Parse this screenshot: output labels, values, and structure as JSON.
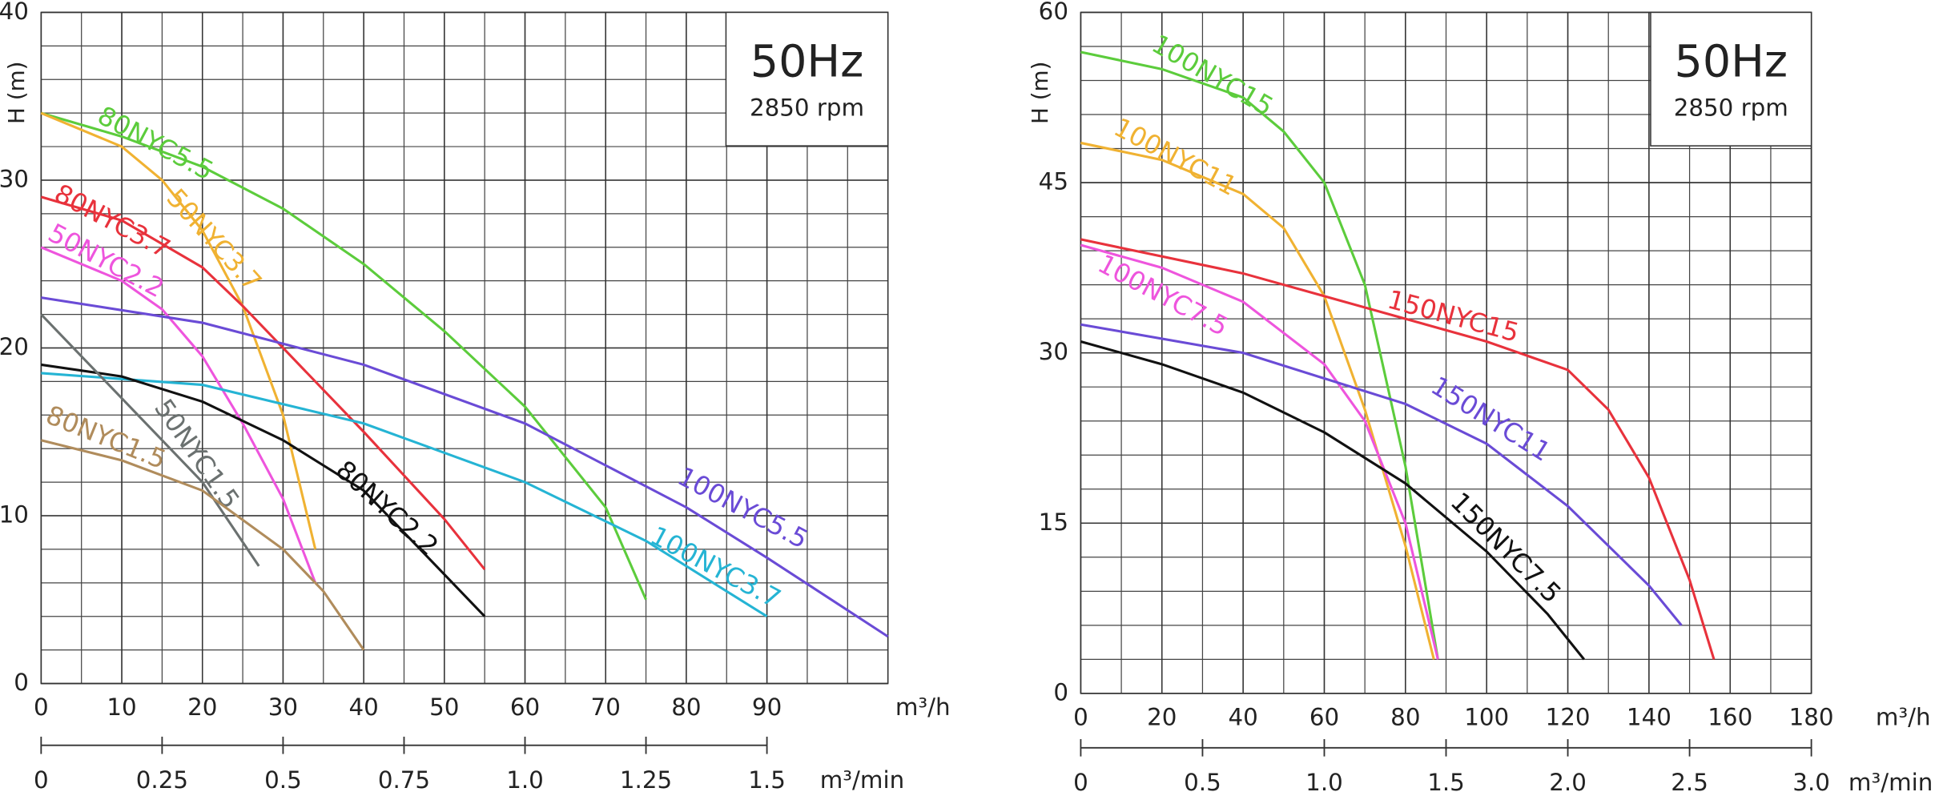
{
  "chart_data": [
    {
      "type": "line",
      "ylabel": "H (m)",
      "xlabel": "m³/h",
      "x2label": "m³/min",
      "annotation": {
        "title": "50Hz",
        "subtitle": "2850 rpm"
      },
      "xlim": [
        0,
        105
      ],
      "xticks": [
        0,
        10,
        20,
        30,
        40,
        50,
        60,
        70,
        80,
        90
      ],
      "ylim": [
        0,
        40
      ],
      "yticks": [
        0,
        10,
        20,
        30,
        40
      ],
      "x2lim": [
        0,
        1.75
      ],
      "x2ticks": [
        0,
        0.25,
        0.5,
        0.75,
        {
          "value": 1,
          "label": "1.0"
        },
        1.25,
        1.5
      ],
      "grid": true,
      "series": [
        {
          "name": "80NYC5.5",
          "color": "#5ccc3c",
          "x": [
            0,
            10,
            20,
            30,
            40,
            50,
            60,
            70,
            75
          ],
          "values": [
            34,
            32.6,
            30.8,
            28.3,
            25,
            21,
            16.5,
            10.5,
            5
          ]
        },
        {
          "name": "50NYC3.7",
          "color": "#f0b232",
          "x": [
            0,
            10,
            15,
            20,
            25,
            30,
            34
          ],
          "values": [
            34,
            32,
            30,
            27,
            22.5,
            16,
            8
          ]
        },
        {
          "name": "80NYC3.7",
          "color": "#e8323c",
          "x": [
            0,
            10,
            20,
            25,
            30,
            40,
            50,
            55
          ],
          "values": [
            29,
            27.6,
            24.8,
            22.5,
            20,
            15,
            9.8,
            6.8
          ]
        },
        {
          "name": "50NYC2.2",
          "color": "#ee55dd",
          "x": [
            0,
            10,
            15,
            20,
            25,
            30,
            34
          ],
          "values": [
            26,
            24,
            22.3,
            19.5,
            15.5,
            11,
            6
          ]
        },
        {
          "name": "100NYC5.5",
          "color": "#6a4bd6",
          "x": [
            0,
            20,
            40,
            60,
            80,
            90,
            105
          ],
          "values": [
            23,
            21.5,
            19,
            15.5,
            10.5,
            7.5,
            2.8
          ]
        },
        {
          "name": "100NYC3.7",
          "color": "#25b4d4",
          "x": [
            0,
            20,
            40,
            60,
            75,
            90
          ],
          "values": [
            18.5,
            17.8,
            15.5,
            12,
            8.5,
            4
          ]
        },
        {
          "name": "80NYC2.2",
          "color": "#111111",
          "x": [
            0,
            10,
            20,
            30,
            40,
            50,
            55
          ],
          "values": [
            19,
            18.3,
            16.8,
            14.5,
            11.5,
            6.5,
            4
          ]
        },
        {
          "name": "50NYC1.5",
          "color": "#6b7170",
          "x": [
            0,
            5,
            10,
            15,
            20,
            27
          ],
          "values": [
            22,
            19.5,
            17,
            14.5,
            12,
            7
          ]
        },
        {
          "name": "80NYC1.5",
          "color": "#b08c5c",
          "x": [
            0,
            10,
            20,
            30,
            35,
            40
          ],
          "values": [
            14.5,
            13.3,
            11.5,
            8,
            5.5,
            2
          ]
        }
      ]
    },
    {
      "type": "line",
      "ylabel": "H (m)",
      "xlabel": "m³/h",
      "x2label": "m³/min",
      "annotation": {
        "title": "50Hz",
        "subtitle": "2850 rpm"
      },
      "xlim": [
        0,
        180
      ],
      "xticks": [
        0,
        20,
        40,
        60,
        80,
        100,
        120,
        140,
        160,
        180
      ],
      "ylim": [
        0,
        60
      ],
      "yticks": [
        0,
        15,
        30,
        45,
        60
      ],
      "x2lim": [
        0,
        3
      ],
      "x2ticks": [
        0,
        0.5,
        {
          "value": 1,
          "label": "1.0"
        },
        1.5,
        {
          "value": 2,
          "label": "2.0"
        },
        2.5,
        {
          "value": 3,
          "label": "3.0"
        }
      ],
      "grid": true,
      "series": [
        {
          "name": "100NYC15",
          "color": "#5ccc3c",
          "x": [
            0,
            20,
            40,
            50,
            60,
            70,
            80,
            88
          ],
          "values": [
            56.5,
            55,
            52.5,
            49.5,
            45,
            36,
            20,
            3
          ]
        },
        {
          "name": "100NYC11",
          "color": "#f0b232",
          "x": [
            0,
            20,
            40,
            50,
            60,
            70,
            80,
            87
          ],
          "values": [
            48.5,
            47,
            44,
            41,
            35,
            25,
            13,
            3
          ]
        },
        {
          "name": "150NYC15",
          "color": "#e8323c",
          "x": [
            0,
            40,
            80,
            100,
            120,
            130,
            140,
            150,
            156
          ],
          "values": [
            40,
            37,
            33,
            31,
            28.5,
            25,
            19,
            10,
            3
          ]
        },
        {
          "name": "100NYC7.5",
          "color": "#ee55dd",
          "x": [
            0,
            20,
            40,
            60,
            70,
            80,
            88
          ],
          "values": [
            39.5,
            37.5,
            34.5,
            29,
            24,
            15,
            3
          ]
        },
        {
          "name": "150NYC11",
          "color": "#6a4bd6",
          "x": [
            0,
            40,
            80,
            100,
            120,
            140,
            148
          ],
          "values": [
            32.5,
            30,
            25.5,
            22,
            16.5,
            9.5,
            6
          ]
        },
        {
          "name": "150NYC7.5",
          "color": "#111111",
          "x": [
            0,
            20,
            40,
            60,
            80,
            100,
            115,
            124
          ],
          "values": [
            31,
            29,
            26.5,
            23,
            18.5,
            12.5,
            7,
            3
          ]
        }
      ]
    }
  ]
}
